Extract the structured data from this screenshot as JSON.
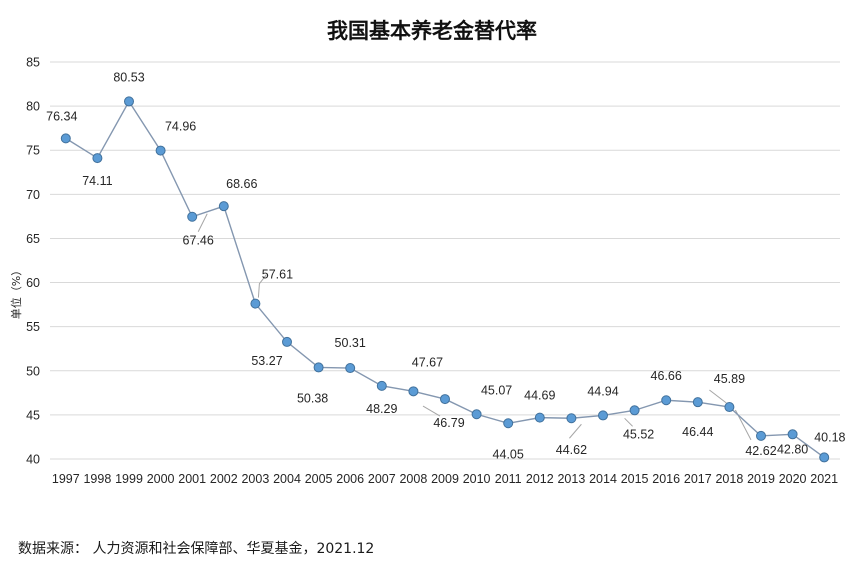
{
  "chart_data": {
    "type": "line",
    "title": "我国基本养老金替代率",
    "ylabel": "单位（%）",
    "xlabel": "",
    "ylim": [
      40,
      85
    ],
    "yticks": [
      40,
      45,
      50,
      55,
      60,
      65,
      70,
      75,
      80,
      85
    ],
    "grid": true,
    "categories": [
      "1997",
      "1998",
      "1999",
      "2000",
      "2001",
      "2002",
      "2003",
      "2004",
      "2005",
      "2006",
      "2007",
      "2008",
      "2009",
      "2010",
      "2011",
      "2012",
      "2013",
      "2014",
      "2015",
      "2016",
      "2017",
      "2018",
      "2019",
      "2020",
      "2021"
    ],
    "series": [
      {
        "values": [
          76.34,
          74.11,
          80.53,
          74.96,
          67.46,
          68.66,
          57.61,
          53.27,
          50.38,
          50.31,
          48.29,
          47.67,
          46.79,
          45.07,
          44.05,
          44.69,
          44.62,
          44.94,
          45.52,
          46.66,
          46.44,
          45.89,
          42.62,
          42.8,
          40.18
        ],
        "labels": [
          "76.34",
          "74.11",
          "80.53",
          "74.96",
          "67.46",
          "68.66",
          "57.61",
          "53.27",
          "50.38",
          "50.31",
          "48.29",
          "47.67",
          "46.79",
          "45.07",
          "44.05",
          "44.69",
          "44.62",
          "44.94",
          "45.52",
          "46.66",
          "46.44",
          "45.89",
          "42.62",
          "42.80",
          "40.18"
        ]
      }
    ],
    "colors": {
      "line": "#8497b0",
      "marker": "#5b9bd5",
      "marker_edge": "#41719c",
      "grid": "#d9d9d9"
    }
  },
  "footer": {
    "source": "数据来源：  人力资源和社会保障部、华夏基金，2021.12"
  }
}
